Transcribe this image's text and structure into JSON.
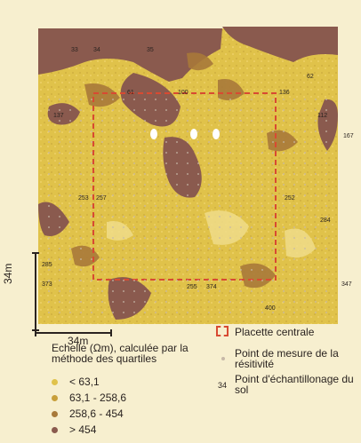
{
  "colors": {
    "background": "#f7efcf",
    "low": "#e0c24a",
    "mid_low": "#c89f3a",
    "mid_high": "#a8793a",
    "high": "#8a5a4e",
    "plot_border": "#d84a32",
    "sample_point": "#2a2320"
  },
  "axis": {
    "vertical_label": "34m",
    "horizontal_label": "34m"
  },
  "legend": {
    "title": "Echelle (Ωm), calculée par la méthode des quartiles",
    "classes": [
      {
        "label": "< 63,1",
        "color": "#e0c24a"
      },
      {
        "label": "63,1 - 258,6",
        "color": "#c89f3a"
      },
      {
        "label": "258,6 - 454",
        "color": "#a8793a"
      },
      {
        "label": "> 454",
        "color": "#8a5a4e"
      }
    ]
  },
  "key": {
    "plot_label": "Placette centrale",
    "measure_label": "Point de mesure de la résitivité",
    "sample_prefix": "34",
    "sample_label": "Point d'échantillonage du sol"
  },
  "sample_points": [
    {
      "label": "33"
    },
    {
      "label": "34"
    },
    {
      "label": "35"
    },
    {
      "label": "62"
    },
    {
      "label": "61"
    },
    {
      "label": "100"
    },
    {
      "label": "136"
    },
    {
      "label": "137"
    },
    {
      "label": "112"
    },
    {
      "label": "167"
    },
    {
      "label": "253"
    },
    {
      "label": "257"
    },
    {
      "label": "252"
    },
    {
      "label": "284"
    },
    {
      "label": "285"
    },
    {
      "label": "373"
    },
    {
      "label": "347"
    },
    {
      "label": "255"
    },
    {
      "label": "374"
    },
    {
      "label": "400"
    }
  ]
}
